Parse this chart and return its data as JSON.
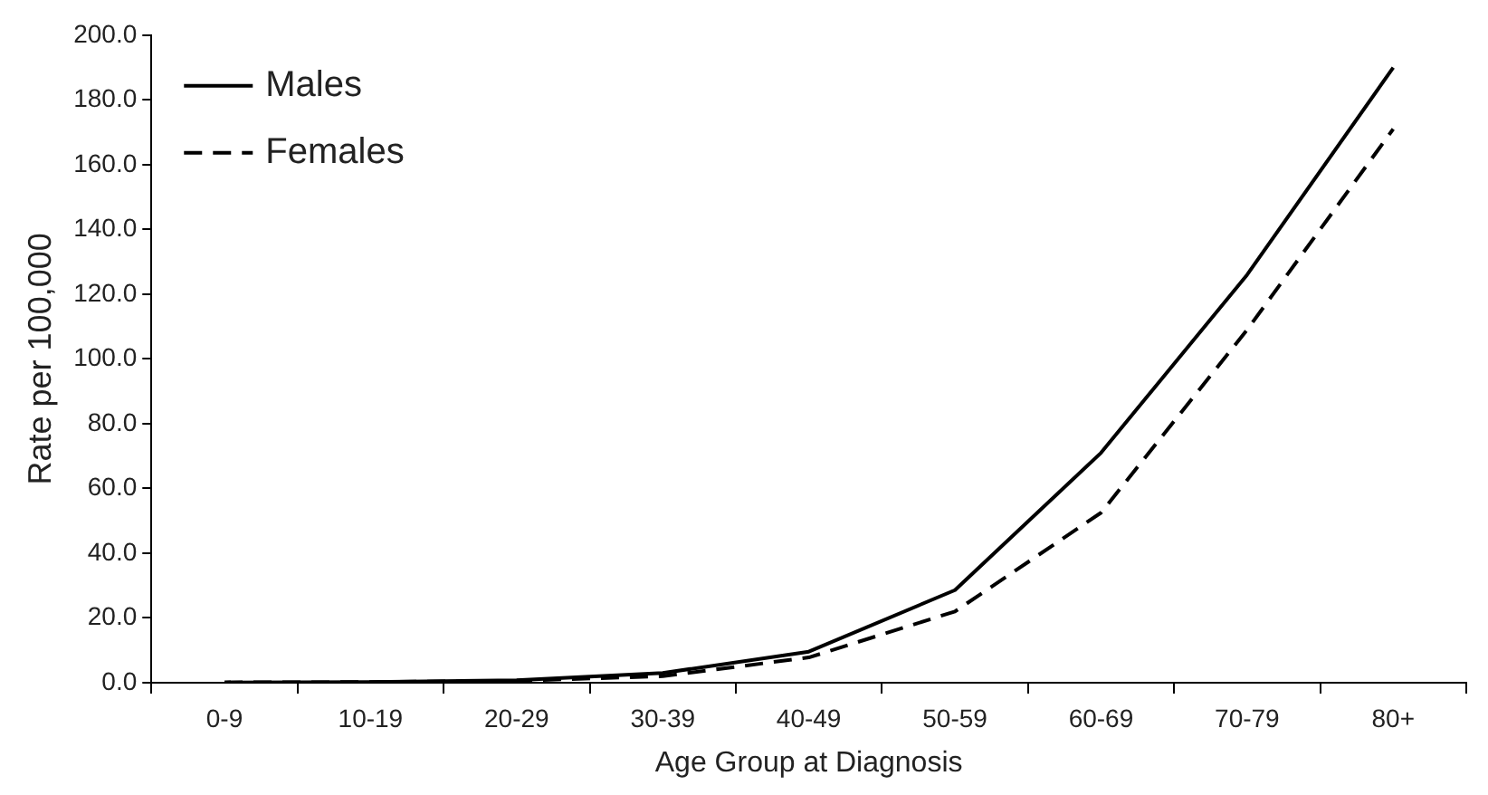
{
  "chart_data": {
    "type": "line",
    "xlabel": "Age Group at Diagnosis",
    "ylabel": "Rate per 100,000",
    "categories": [
      "0-9",
      "10-19",
      "20-29",
      "30-39",
      "40-49",
      "50-59",
      "60-69",
      "70-79",
      "80+"
    ],
    "series": [
      {
        "name": "Males",
        "color": "#000000",
        "line_style": "solid",
        "values": [
          0.1,
          0.2,
          0.8,
          3.0,
          9.6,
          28.6,
          71.0,
          126.0,
          190.0
        ]
      },
      {
        "name": "Females",
        "color": "#000000",
        "line_style": "dashed",
        "values": [
          0.1,
          0.2,
          0.6,
          2.0,
          7.8,
          22.0,
          52.5,
          109.0,
          171.0
        ]
      }
    ],
    "ylim": [
      0,
      200
    ],
    "yticks": [
      {
        "value": 0,
        "label": "0.0"
      },
      {
        "value": 20,
        "label": "20.0"
      },
      {
        "value": 40,
        "label": "40.0"
      },
      {
        "value": 60,
        "label": "60.0"
      },
      {
        "value": 80,
        "label": "80.0"
      },
      {
        "value": 100,
        "label": "100.0"
      },
      {
        "value": 120,
        "label": "120.0"
      },
      {
        "value": 140,
        "label": "140.0"
      },
      {
        "value": 160,
        "label": "160.0"
      },
      {
        "value": 180,
        "label": "180.0"
      },
      {
        "value": 200,
        "label": "200.0"
      }
    ],
    "grid": false,
    "legend": "top left",
    "marker": "none"
  }
}
